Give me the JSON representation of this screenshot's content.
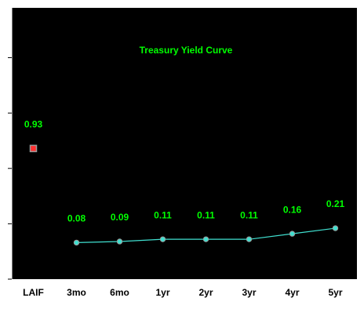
{
  "chart_data": {
    "type": "line",
    "title": "Treasury Yield Curve",
    "categories": [
      "LAIF",
      "3mo",
      "6mo",
      "1yr",
      "2yr",
      "3yr",
      "4yr",
      "5yr"
    ],
    "series": [
      {
        "color": "#ff3030",
        "marker": "square",
        "line": false,
        "values": [
          0.93,
          null,
          null,
          null,
          null,
          null,
          null,
          null
        ]
      },
      {
        "color": "#40e0d0",
        "marker": "circle",
        "line": true,
        "values": [
          null,
          0.08,
          0.09,
          0.11,
          0.11,
          0.11,
          0.16,
          0.21
        ]
      }
    ],
    "ylim": [
      -0.25,
      2.2
    ],
    "yticks": [
      -0.25,
      0.25,
      0.75,
      1.25,
      1.75
    ]
  }
}
